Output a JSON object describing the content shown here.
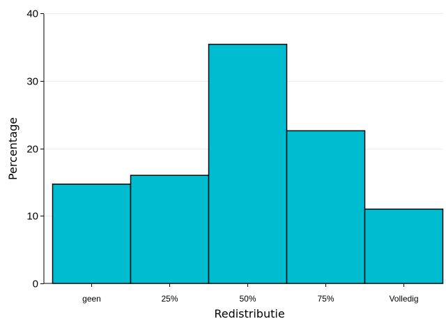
{
  "chart_data": {
    "type": "bar",
    "title": "",
    "xlabel": "Redistributie",
    "ylabel": "Percentage",
    "categories": [
      "geen",
      "25%",
      "50%",
      "75%",
      "Volledig"
    ],
    "values": [
      14.7,
      16.0,
      35.4,
      22.6,
      11.0
    ],
    "ylim": [
      0,
      40
    ],
    "yticks": [
      0,
      10,
      20,
      30,
      40
    ],
    "grid": true,
    "legend": "none",
    "bar_color": "#00bcd0",
    "bar_edge_color": "#000000",
    "grid_color": "#e6eef2"
  }
}
